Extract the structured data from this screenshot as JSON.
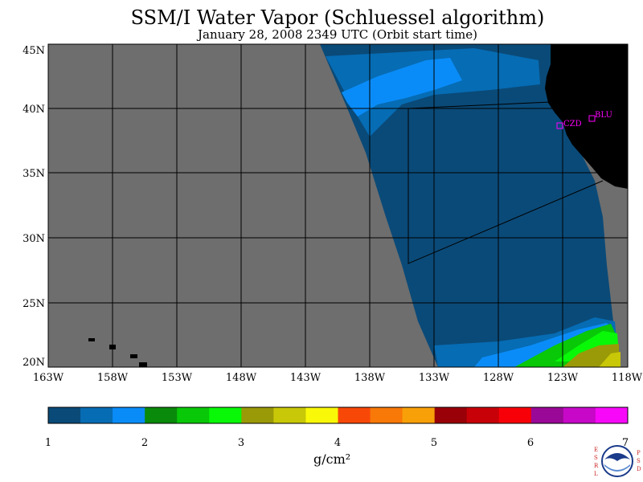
{
  "title": "SSM/I Water Vapor (Schluessel algorithm)",
  "subtitle": "January 28, 2008  2349 UTC  (Orbit start time)",
  "lat_labels": [
    "45N",
    "40N",
    "35N",
    "30N",
    "25N",
    "20N"
  ],
  "lon_labels": [
    "163W",
    "158W",
    "153W",
    "148W",
    "143W",
    "138W",
    "133W",
    "128W",
    "123W",
    "118W"
  ],
  "stations": [
    {
      "name": "CZD",
      "color": "#ff00ff"
    },
    {
      "name": "BLU",
      "color": "#ff00ff"
    }
  ],
  "colorbar": {
    "colors": [
      "#0a4a78",
      "#066cb4",
      "#0a8cf8",
      "#0a8a0a",
      "#08c808",
      "#08f808",
      "#9a9a08",
      "#c8c808",
      "#f8f808",
      "#f84808",
      "#f87808",
      "#f8a008",
      "#9a0008",
      "#c80008",
      "#f80008",
      "#9a0898",
      "#c808c8",
      "#f808f8"
    ],
    "tick_labels": [
      "1",
      "2",
      "3",
      "4",
      "5",
      "6",
      "7"
    ],
    "unit": "g/cm²"
  },
  "map_colors": {
    "land": "#000000",
    "no_data": "#6e6e6e",
    "dark_blue": "#0a4a78",
    "mid_blue": "#066cb4",
    "light_blue": "#0a8cf8"
  },
  "logo": {
    "left_letters": "E S R L",
    "right_letters": "P S D",
    "center_text": "NOAA"
  }
}
